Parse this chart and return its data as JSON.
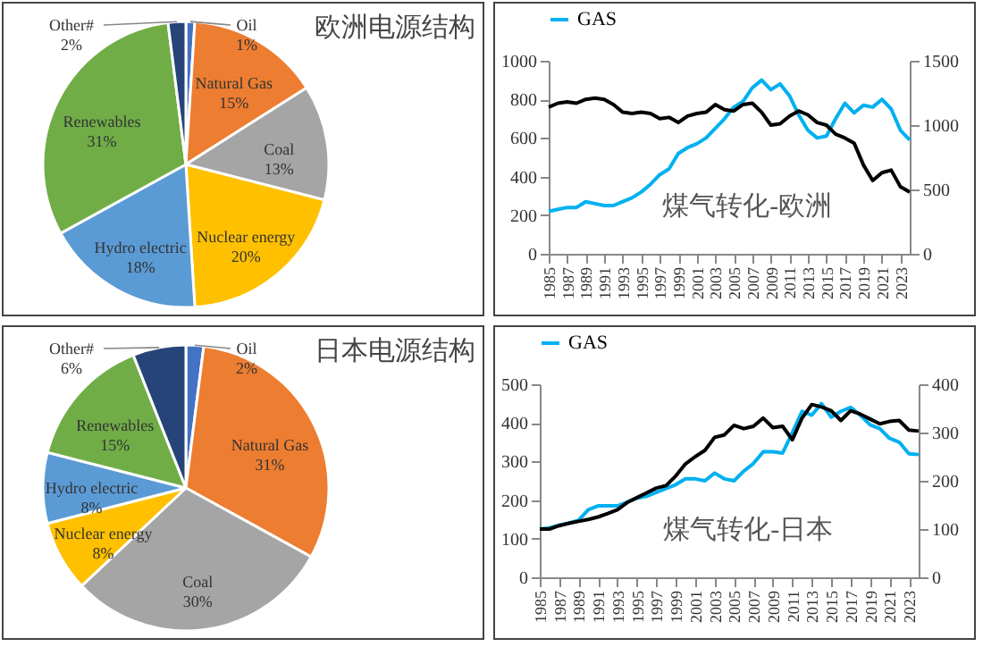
{
  "chart_data": [
    {
      "type": "pie",
      "title": "欧洲电源结构",
      "categories": [
        "Oil",
        "Natural Gas",
        "Coal",
        "Nuclear energy",
        "Hydro electric",
        "Renewables",
        "Other#"
      ],
      "values": [
        1,
        15,
        13,
        20,
        18,
        31,
        2
      ],
      "value_labels": [
        "1%",
        "15%",
        "13%",
        "20%",
        "18%",
        "31%",
        "2%"
      ],
      "colors": [
        "#4472c4",
        "#ed7d31",
        "#a5a5a5",
        "#ffc000",
        "#5b9bd5",
        "#70ad47",
        "#264478"
      ]
    },
    {
      "type": "line",
      "annotations": [
        "煤气转化-欧洲"
      ],
      "x": [
        1985,
        1986,
        1987,
        1988,
        1989,
        1990,
        1991,
        1992,
        1993,
        1994,
        1995,
        1996,
        1997,
        1998,
        1999,
        2000,
        2001,
        2002,
        2003,
        2004,
        2005,
        2006,
        2007,
        2008,
        2009,
        2010,
        2011,
        2012,
        2013,
        2014,
        2015,
        2016,
        2017,
        2018,
        2019,
        2020,
        2021,
        2022,
        2023,
        2024
      ],
      "xlim": [
        1985,
        2024
      ],
      "xticks": [
        1985,
        1987,
        1989,
        1991,
        1993,
        1995,
        1997,
        1999,
        2001,
        2003,
        2005,
        2007,
        2009,
        2011,
        2013,
        2015,
        2017,
        2019,
        2021,
        2023
      ],
      "ylim": [
        0,
        1000
      ],
      "yticks": [
        0,
        200,
        400,
        600,
        800,
        1000
      ],
      "y2lim": [
        0,
        1500
      ],
      "y2ticks": [
        0,
        500,
        1000,
        1500
      ],
      "legend": "top",
      "marker": "none",
      "series": [
        {
          "name": "GAS",
          "color": "#00b0f0",
          "values": [
            220,
            230,
            240,
            240,
            270,
            260,
            250,
            250,
            270,
            290,
            320,
            360,
            410,
            440,
            520,
            550,
            570,
            600,
            650,
            700,
            760,
            790,
            860,
            900,
            850,
            880,
            820,
            720,
            640,
            600,
            610,
            700,
            780,
            730,
            770,
            760,
            800,
            750,
            640,
            590
          ]
        },
        {
          "color": "#000000",
          "axis": "y2",
          "values": [
            1140,
            1170,
            1180,
            1170,
            1200,
            1210,
            1200,
            1160,
            1100,
            1090,
            1100,
            1090,
            1050,
            1060,
            1020,
            1070,
            1090,
            1100,
            1160,
            1120,
            1110,
            1160,
            1170,
            1100,
            1000,
            1010,
            1070,
            1110,
            1080,
            1020,
            1000,
            930,
            900,
            860,
            690,
            570,
            630,
            650,
            520,
            480
          ]
        }
      ]
    },
    {
      "type": "pie",
      "title": "日本电源结构",
      "categories": [
        "Oil",
        "Natural Gas",
        "Coal",
        "Nuclear energy",
        "Hydro electric",
        "Renewables",
        "Other#"
      ],
      "values": [
        2,
        31,
        30,
        8,
        8,
        15,
        6
      ],
      "value_labels": [
        "2%",
        "31%",
        "30%",
        "8%",
        "8%",
        "15%",
        "6%"
      ],
      "colors": [
        "#4472c4",
        "#ed7d31",
        "#a5a5a5",
        "#ffc000",
        "#5b9bd5",
        "#70ad47",
        "#264478"
      ]
    },
    {
      "type": "line",
      "annotations": [
        "煤气转化-日本"
      ],
      "x": [
        1985,
        1986,
        1987,
        1988,
        1989,
        1990,
        1991,
        1992,
        1993,
        1994,
        1995,
        1996,
        1997,
        1998,
        1999,
        2000,
        2001,
        2002,
        2003,
        2004,
        2005,
        2006,
        2007,
        2008,
        2009,
        2010,
        2011,
        2012,
        2013,
        2014,
        2015,
        2016,
        2017,
        2018,
        2019,
        2020,
        2021,
        2022,
        2023,
        2024
      ],
      "xlim": [
        1985,
        2024
      ],
      "xticks": [
        1985,
        1987,
        1989,
        1991,
        1993,
        1995,
        1997,
        1999,
        2001,
        2003,
        2005,
        2007,
        2009,
        2011,
        2013,
        2015,
        2017,
        2019,
        2021,
        2023
      ],
      "ylim": [
        0,
        500
      ],
      "yticks": [
        0,
        100,
        200,
        300,
        400,
        500
      ],
      "y2lim": [
        0,
        400
      ],
      "y2ticks": [
        0,
        100,
        200,
        300,
        400
      ],
      "legend": "top",
      "marker": "none",
      "series": [
        {
          "name": "GAS",
          "color": "#00b0f0",
          "values": [
            125,
            128,
            135,
            140,
            148,
            175,
            185,
            185,
            185,
            195,
            205,
            210,
            220,
            230,
            240,
            255,
            255,
            250,
            270,
            255,
            250,
            275,
            295,
            325,
            325,
            322,
            375,
            430,
            420,
            450,
            415,
            430,
            440,
            420,
            395,
            385,
            360,
            350,
            320,
            318
          ]
        },
        {
          "color": "#000000",
          "axis": "y2",
          "values": [
            100,
            100,
            107,
            112,
            116,
            120,
            125,
            132,
            140,
            155,
            165,
            175,
            185,
            190,
            210,
            235,
            250,
            263,
            290,
            295,
            315,
            308,
            313,
            330,
            310,
            313,
            285,
            330,
            358,
            353,
            345,
            325,
            345,
            338,
            328,
            318,
            323,
            325,
            305,
            303
          ]
        }
      ]
    }
  ]
}
